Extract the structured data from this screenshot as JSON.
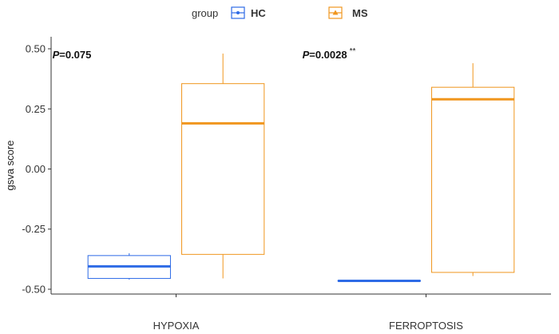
{
  "legend": {
    "title": "group",
    "items": [
      {
        "label": "HC",
        "color": "#2E6BE6"
      },
      {
        "label": "MS",
        "color": "#F0961E"
      }
    ]
  },
  "chart_data": {
    "type": "box",
    "ylabel": "gsva score",
    "xlabel": "",
    "categories": [
      "HYPOXIA",
      "FERROPTOSIS"
    ],
    "ylim": [
      -0.52,
      0.55
    ],
    "yticks": [
      -0.5,
      -0.25,
      0.0,
      0.25,
      0.5
    ],
    "ytick_labels": [
      "-0.50",
      "-0.25",
      "0.00",
      "0.25",
      "0.50"
    ],
    "grid": false,
    "legend_position": "top",
    "series": [
      {
        "name": "HC",
        "color": "#2E6BE6",
        "boxes": [
          {
            "min": -0.46,
            "q1": -0.455,
            "median": -0.405,
            "q3": -0.36,
            "max": -0.35
          },
          {
            "min": -0.467,
            "q1": -0.466,
            "median": -0.465,
            "q3": -0.464,
            "max": -0.463
          }
        ]
      },
      {
        "name": "MS",
        "color": "#F0961E",
        "boxes": [
          {
            "min": -0.455,
            "q1": -0.355,
            "median": 0.19,
            "q3": 0.355,
            "max": 0.48
          },
          {
            "min": -0.445,
            "q1": -0.43,
            "median": 0.29,
            "q3": 0.34,
            "max": 0.44
          }
        ]
      }
    ],
    "annotations": [
      {
        "category": "HYPOXIA",
        "p_label": "P",
        "p_value": "=0.075",
        "stars": ""
      },
      {
        "category": "FERROPTOSIS",
        "p_label": "P",
        "p_value": "=0.0028",
        "stars": "**"
      }
    ]
  }
}
